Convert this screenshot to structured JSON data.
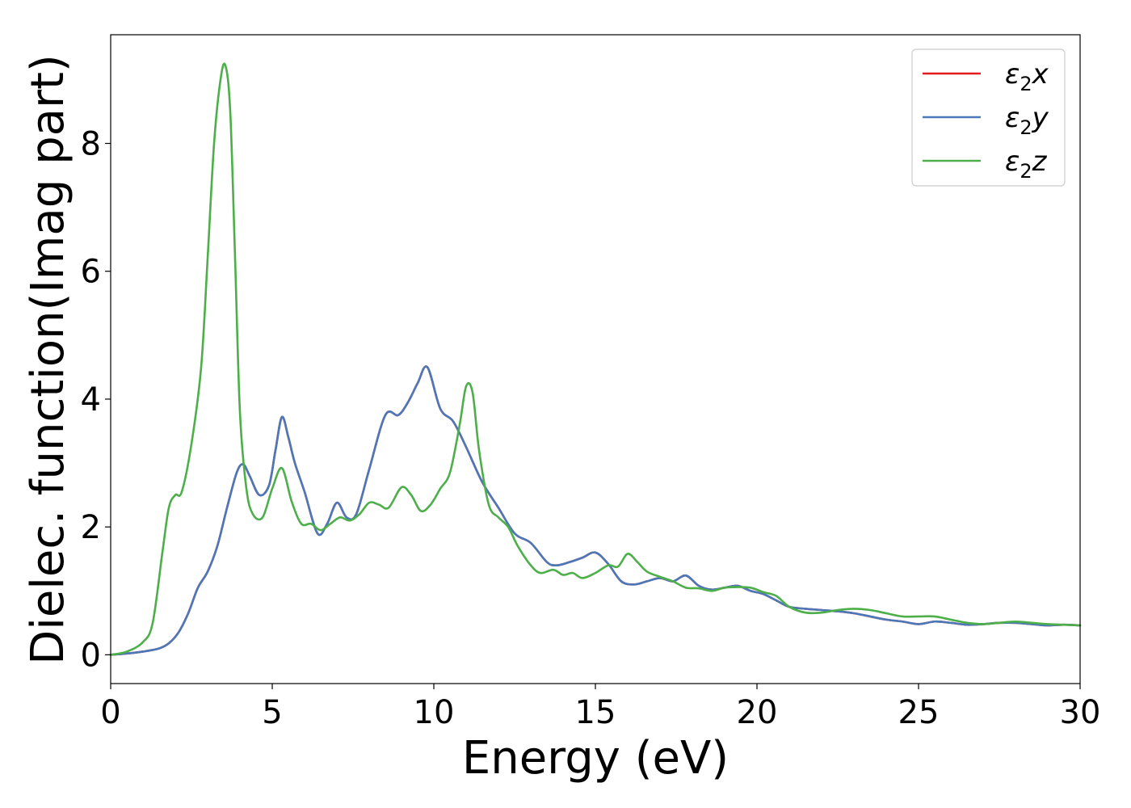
{
  "chart_data": {
    "type": "line",
    "title": "",
    "xlabel": "Energy (eV)",
    "ylabel": "Dielec. function(Imag part)",
    "xlim": [
      0,
      30
    ],
    "ylim": [
      -0.45,
      9.7
    ],
    "xticks": [
      0,
      5,
      10,
      15,
      20,
      25,
      30
    ],
    "yticks": [
      0,
      2,
      4,
      6,
      8
    ],
    "grid": false,
    "legend_position": "top-right",
    "series": [
      {
        "name": "ε2x",
        "legend": {
          "base": "ε",
          "sub": "2",
          "axis": "x"
        },
        "color": "#e41a1c",
        "x": [
          0,
          0.5,
          1.0,
          1.5,
          1.8,
          2.1,
          2.4,
          2.7,
          3.0,
          3.3,
          3.6,
          3.9,
          4.1,
          4.3,
          4.6,
          4.9,
          5.1,
          5.3,
          5.5,
          5.7,
          6.0,
          6.4,
          6.7,
          7.0,
          7.3,
          7.6,
          8.0,
          8.5,
          8.9,
          9.2,
          9.5,
          9.8,
          10.2,
          10.6,
          11.0,
          11.5,
          12.0,
          12.5,
          13.0,
          13.5,
          13.8,
          14.2,
          14.6,
          15.0,
          15.4,
          15.8,
          16.2,
          16.6,
          17.0,
          17.4,
          17.8,
          18.2,
          18.6,
          19.0,
          19.4,
          19.8,
          20.2,
          20.6,
          21.0,
          21.5,
          22.0,
          22.5,
          23.0,
          23.5,
          24.0,
          24.5,
          25.0,
          25.5,
          26.0,
          26.5,
          27.0,
          27.5,
          28.0,
          28.5,
          29.0,
          29.5,
          30.0
        ],
        "values": [
          0.0,
          0.02,
          0.05,
          0.1,
          0.18,
          0.35,
          0.65,
          1.05,
          1.3,
          1.7,
          2.3,
          2.85,
          2.98,
          2.8,
          2.5,
          2.65,
          3.2,
          3.72,
          3.4,
          3.0,
          2.55,
          1.9,
          2.05,
          2.38,
          2.15,
          2.2,
          2.9,
          3.75,
          3.75,
          3.95,
          4.25,
          4.5,
          3.85,
          3.65,
          3.25,
          2.7,
          2.3,
          1.9,
          1.75,
          1.45,
          1.4,
          1.45,
          1.52,
          1.6,
          1.42,
          1.15,
          1.1,
          1.15,
          1.2,
          1.15,
          1.24,
          1.08,
          1.02,
          1.05,
          1.08,
          1.0,
          0.95,
          0.85,
          0.75,
          0.72,
          0.7,
          0.68,
          0.65,
          0.6,
          0.55,
          0.52,
          0.48,
          0.52,
          0.5,
          0.47,
          0.48,
          0.5,
          0.5,
          0.48,
          0.46,
          0.47,
          0.46
        ]
      },
      {
        "name": "ε2y",
        "legend": {
          "base": "ε",
          "sub": "2",
          "axis": "y"
        },
        "color": "#4a78b8",
        "x": [
          0,
          0.5,
          1.0,
          1.5,
          1.8,
          2.1,
          2.4,
          2.7,
          3.0,
          3.3,
          3.6,
          3.9,
          4.1,
          4.3,
          4.6,
          4.9,
          5.1,
          5.3,
          5.5,
          5.7,
          6.0,
          6.4,
          6.7,
          7.0,
          7.3,
          7.6,
          8.0,
          8.5,
          8.9,
          9.2,
          9.5,
          9.8,
          10.2,
          10.6,
          11.0,
          11.5,
          12.0,
          12.5,
          13.0,
          13.5,
          13.8,
          14.2,
          14.6,
          15.0,
          15.4,
          15.8,
          16.2,
          16.6,
          17.0,
          17.4,
          17.8,
          18.2,
          18.6,
          19.0,
          19.4,
          19.8,
          20.2,
          20.6,
          21.0,
          21.5,
          22.0,
          22.5,
          23.0,
          23.5,
          24.0,
          24.5,
          25.0,
          25.5,
          26.0,
          26.5,
          27.0,
          27.5,
          28.0,
          28.5,
          29.0,
          29.5,
          30.0
        ],
        "values": [
          0.0,
          0.02,
          0.05,
          0.1,
          0.18,
          0.35,
          0.65,
          1.05,
          1.3,
          1.7,
          2.3,
          2.85,
          2.98,
          2.8,
          2.5,
          2.65,
          3.2,
          3.72,
          3.4,
          3.0,
          2.55,
          1.9,
          2.05,
          2.38,
          2.15,
          2.2,
          2.9,
          3.75,
          3.75,
          3.95,
          4.25,
          4.5,
          3.85,
          3.65,
          3.25,
          2.7,
          2.3,
          1.9,
          1.75,
          1.45,
          1.4,
          1.45,
          1.52,
          1.6,
          1.42,
          1.15,
          1.1,
          1.15,
          1.2,
          1.15,
          1.24,
          1.08,
          1.02,
          1.05,
          1.08,
          1.0,
          0.95,
          0.85,
          0.75,
          0.72,
          0.7,
          0.68,
          0.65,
          0.6,
          0.55,
          0.52,
          0.48,
          0.52,
          0.5,
          0.47,
          0.48,
          0.5,
          0.5,
          0.48,
          0.46,
          0.47,
          0.46
        ]
      },
      {
        "name": "ε2z",
        "legend": {
          "base": "ε",
          "sub": "2",
          "axis": "z"
        },
        "color": "#4daf4a",
        "x": [
          0,
          0.5,
          1.0,
          1.3,
          1.6,
          1.8,
          2.0,
          2.2,
          2.5,
          2.8,
          3.0,
          3.2,
          3.4,
          3.55,
          3.7,
          3.85,
          4.0,
          4.2,
          4.4,
          4.7,
          5.0,
          5.3,
          5.6,
          5.9,
          6.2,
          6.5,
          6.8,
          7.1,
          7.4,
          7.7,
          8.0,
          8.3,
          8.6,
          9.0,
          9.3,
          9.6,
          9.9,
          10.2,
          10.5,
          10.8,
          11.0,
          11.2,
          11.4,
          11.7,
          12.0,
          12.3,
          12.6,
          13.0,
          13.3,
          13.7,
          14.0,
          14.3,
          14.6,
          15.0,
          15.4,
          15.7,
          16.0,
          16.3,
          16.6,
          17.0,
          17.4,
          17.8,
          18.2,
          18.6,
          19.0,
          19.4,
          19.8,
          20.2,
          20.6,
          21.0,
          21.5,
          22.0,
          22.5,
          23.0,
          23.5,
          24.0,
          24.5,
          25.0,
          25.5,
          26.0,
          26.5,
          27.0,
          27.5,
          28.0,
          28.5,
          29.0,
          29.5,
          30.0
        ],
        "values": [
          0.0,
          0.05,
          0.2,
          0.5,
          1.6,
          2.3,
          2.5,
          2.55,
          3.3,
          4.5,
          6.2,
          8.0,
          9.0,
          9.22,
          8.5,
          6.2,
          3.8,
          2.6,
          2.2,
          2.15,
          2.6,
          2.92,
          2.4,
          2.05,
          2.05,
          1.95,
          2.05,
          2.15,
          2.1,
          2.2,
          2.38,
          2.35,
          2.3,
          2.62,
          2.5,
          2.25,
          2.35,
          2.6,
          2.85,
          3.6,
          4.2,
          4.1,
          3.2,
          2.35,
          2.15,
          2.0,
          1.7,
          1.4,
          1.28,
          1.33,
          1.25,
          1.28,
          1.2,
          1.28,
          1.4,
          1.38,
          1.58,
          1.45,
          1.3,
          1.22,
          1.15,
          1.05,
          1.04,
          1.0,
          1.05,
          1.06,
          1.05,
          0.98,
          0.92,
          0.75,
          0.66,
          0.66,
          0.7,
          0.72,
          0.7,
          0.65,
          0.6,
          0.6,
          0.6,
          0.55,
          0.5,
          0.48,
          0.5,
          0.52,
          0.5,
          0.48,
          0.47,
          0.46
        ]
      }
    ]
  }
}
